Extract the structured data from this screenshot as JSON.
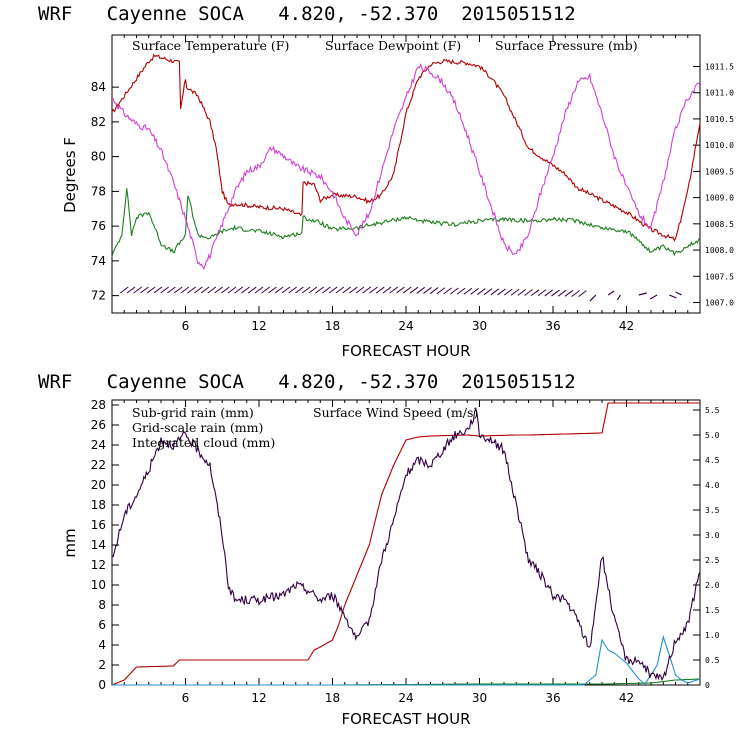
{
  "colors": {
    "temperature": "#b00000",
    "dewpoint": "#1f7f1f",
    "pressure": "#d43ed4",
    "subgrid_rain": "#b00000",
    "gridscale_rain": "#1f7f1f",
    "cloud": "#1e8fd6",
    "wind": "#300040",
    "barbs": "#300040"
  },
  "chart_data": [
    {
      "type": "line",
      "title": "WRF   Cayenne SOCA   4.820, -52.370  2015051512",
      "xlabel": "FORECAST HOUR",
      "ylabel": "Degrees F",
      "xlim": [
        0,
        48
      ],
      "ylim": [
        71,
        87
      ],
      "y2lim": [
        1006.8,
        1012.1
      ],
      "xticks": [
        6,
        12,
        18,
        24,
        30,
        36,
        42
      ],
      "yticks": [
        72,
        74,
        76,
        78,
        80,
        82,
        84
      ],
      "y2ticks": [
        1007.0,
        1007.5,
        1008.0,
        1008.5,
        1009.0,
        1009.5,
        1010.0,
        1010.5,
        1011.0,
        1011.5
      ],
      "y2tick_labels": [
        "1007.0",
        "1007.5",
        "1008.0",
        "1008.5",
        "1009.0",
        "1009.5",
        "1010.0",
        "1010.5",
        "1011.0",
        "1011.5"
      ],
      "legend": [
        "Surface Temperature (F)",
        "Surface Dewpoint (F)",
        "Surface Pressure (mb)"
      ],
      "series": [
        {
          "name": "Surface Temperature (F)",
          "axis": "left",
          "x": [
            0,
            1,
            2,
            3,
            3.5,
            4,
            5,
            5.5,
            5.6,
            6,
            6.1,
            7,
            8,
            8.5,
            9,
            9.5,
            10,
            12,
            14,
            15.5,
            15.6,
            16.5,
            17,
            18,
            20,
            21,
            22,
            23,
            24,
            25,
            26,
            27,
            29,
            30,
            31,
            32,
            33,
            34,
            35,
            36,
            37,
            38,
            40,
            42,
            44,
            46,
            47,
            48
          ],
          "y": [
            82.5,
            83.5,
            84.5,
            85.5,
            85.8,
            85.7,
            85.5,
            85.4,
            82.7,
            84.5,
            84,
            83.5,
            82,
            80.5,
            78,
            77.2,
            77.3,
            77.1,
            77,
            76.6,
            78.5,
            78.4,
            77.5,
            77.8,
            77.7,
            77.4,
            77.8,
            79,
            82.5,
            84.5,
            85.3,
            85.5,
            85.4,
            85.2,
            84.5,
            83.5,
            82,
            80.5,
            80,
            79.5,
            79,
            78.2,
            77.5,
            76.8,
            75.8,
            75.2,
            78,
            82
          ]
        },
        {
          "name": "Surface Dewpoint (F)",
          "axis": "left",
          "x": [
            0,
            0.8,
            1.2,
            1.6,
            2,
            3,
            4,
            5,
            6,
            6.2,
            7,
            8,
            9,
            10,
            12,
            14,
            15.5,
            15.6,
            17,
            18,
            20,
            22,
            24,
            26,
            28,
            30,
            32,
            34,
            36,
            38,
            40,
            42,
            43,
            44,
            45,
            46,
            47,
            48
          ],
          "y": [
            74.3,
            75.5,
            78.2,
            75.5,
            76.5,
            76.8,
            75,
            74.5,
            75.5,
            77.8,
            75.5,
            75.3,
            75.7,
            75.9,
            75.7,
            75.4,
            75.6,
            76.5,
            76.2,
            75.8,
            75.9,
            76.2,
            76.5,
            76.2,
            76.1,
            76.3,
            76.4,
            76.3,
            76.4,
            76.3,
            75.9,
            75.7,
            75.2,
            74.5,
            74.8,
            74.4,
            74.9,
            75.2
          ]
        },
        {
          "name": "Surface Pressure (mb)",
          "axis": "right",
          "x": [
            0,
            1,
            2,
            3,
            4,
            5,
            6,
            7,
            7.5,
            8,
            9,
            10,
            11,
            12,
            13,
            14,
            15,
            16,
            17,
            18,
            19,
            20,
            21,
            22,
            23,
            24,
            25,
            26,
            27,
            28,
            29,
            30,
            31,
            32,
            33,
            34,
            35,
            36,
            37,
            38,
            39,
            40,
            41,
            42,
            43,
            44,
            45,
            46,
            47,
            48
          ],
          "y": [
            1010.9,
            1010.6,
            1010.4,
            1010.3,
            1009.9,
            1009.3,
            1008.6,
            1007.8,
            1007.7,
            1007.9,
            1008.5,
            1009.1,
            1009.5,
            1009.6,
            1009.95,
            1009.8,
            1009.6,
            1009.5,
            1009.4,
            1009.1,
            1008.6,
            1008.3,
            1008.7,
            1009.5,
            1010.3,
            1010.9,
            1011.5,
            1011.4,
            1011.2,
            1010.8,
            1010.2,
            1009.5,
            1008.8,
            1008.1,
            1007.9,
            1008.3,
            1009.1,
            1009.8,
            1010.6,
            1011.2,
            1011.3,
            1010.6,
            1009.8,
            1009.2,
            1008.7,
            1008.4,
            1009.3,
            1010.3,
            1010.9,
            1011.2
          ]
        }
      ]
    },
    {
      "type": "line",
      "title": "WRF   Cayenne SOCA   4.820, -52.370  2015051512",
      "xlabel": "FORECAST HOUR",
      "ylabel": "mm",
      "xlim": [
        0,
        48
      ],
      "ylim": [
        0,
        28.5
      ],
      "y2lim": [
        0,
        5.7
      ],
      "xticks": [
        6,
        12,
        18,
        24,
        30,
        36,
        42
      ],
      "yticks": [
        0,
        2,
        4,
        6,
        8,
        10,
        12,
        14,
        16,
        18,
        20,
        22,
        24,
        26,
        28
      ],
      "y2ticks": [
        0,
        0.5,
        1.0,
        1.5,
        2.0,
        2.5,
        3.0,
        3.5,
        4.0,
        4.5,
        5.0,
        5.5
      ],
      "y2tick_labels": [
        "0",
        "0.5",
        "1.0",
        "1.5",
        "2.0",
        "2.5",
        "3.0",
        "3.5",
        "4.0",
        "4.5",
        "5.0",
        "5.5"
      ],
      "legend": [
        "Sub-grid rain (mm)",
        "Grid-scale rain (mm)",
        "Integrated cloud (mm)",
        "Surface Wind Speed (m/s)"
      ],
      "series": [
        {
          "name": "Sub-grid rain (mm)",
          "axis": "left",
          "x": [
            0,
            1,
            2,
            5,
            5.5,
            10,
            16,
            16.5,
            17,
            18,
            18.5,
            19,
            20,
            21,
            22,
            23,
            24,
            25,
            26,
            29,
            30,
            33,
            34,
            40,
            40.5,
            48
          ],
          "y": [
            0,
            0.5,
            1.8,
            1.9,
            2.5,
            2.5,
            2.5,
            3.5,
            3.8,
            4.5,
            6,
            8,
            11,
            14,
            19,
            22,
            24.5,
            24.8,
            24.9,
            25,
            24.9,
            25,
            25,
            25.2,
            28.2,
            28.2
          ]
        },
        {
          "name": "Grid-scale rain (mm)",
          "axis": "left",
          "x": [
            0,
            18,
            30,
            40,
            44,
            46,
            48
          ],
          "y": [
            0,
            0,
            0.1,
            0.1,
            0.2,
            0.5,
            0.6
          ]
        },
        {
          "name": "Integrated cloud (mm)",
          "axis": "left",
          "x": [
            0,
            38.5,
            39.5,
            40,
            40.5,
            41,
            42,
            43,
            43.5,
            44,
            44.5,
            45,
            45.5,
            46,
            46.5,
            47,
            48
          ],
          "y": [
            0,
            0,
            1,
            4.5,
            3.5,
            3.2,
            2.2,
            0.6,
            0.1,
            1,
            2,
            4.8,
            3,
            1,
            0.5,
            0.2,
            0.6
          ]
        },
        {
          "name": "Surface Wind Speed (m/s)",
          "axis": "right",
          "x": [
            0,
            1,
            2,
            3,
            4,
            5,
            6,
            7,
            8,
            9,
            9.5,
            10,
            12,
            14,
            15,
            16,
            17,
            18,
            19,
            20,
            21,
            22,
            23,
            24,
            25,
            26,
            27,
            28,
            29,
            29.8,
            30,
            31,
            32,
            33,
            34,
            35,
            36,
            37,
            38,
            39,
            40,
            41,
            42,
            43,
            44,
            45,
            46,
            47,
            48
          ],
          "y": [
            2.5,
            3.4,
            3.8,
            4.3,
            4.9,
            4.8,
            5.0,
            4.7,
            4.4,
            3.0,
            2.0,
            1.7,
            1.7,
            1.8,
            2.0,
            1.9,
            1.7,
            1.8,
            1.4,
            0.9,
            1.3,
            2.5,
            3.3,
            4.2,
            4.5,
            4.4,
            4.7,
            5.0,
            5.1,
            5.5,
            5.0,
            4.9,
            4.7,
            3.6,
            2.5,
            2.2,
            1.8,
            1.7,
            1.3,
            0.7,
            2.6,
            1.3,
            0.5,
            0.5,
            0.2,
            0.1,
            0.9,
            1.2,
            2.3
          ]
        }
      ]
    }
  ]
}
